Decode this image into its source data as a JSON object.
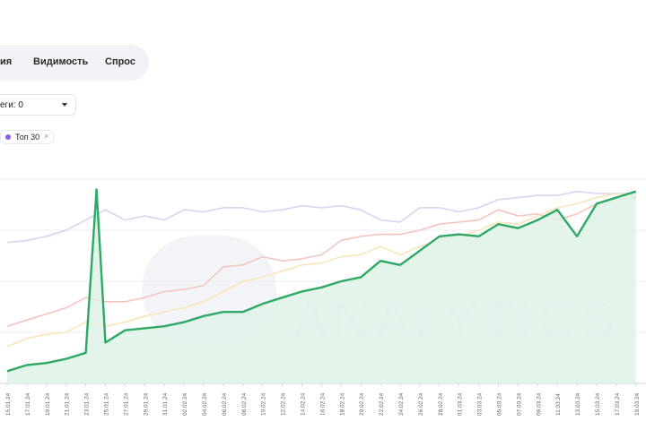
{
  "tabs": {
    "items": [
      {
        "label": "ия"
      },
      {
        "label": "Видимость"
      },
      {
        "label": "Спрос"
      }
    ]
  },
  "filter": {
    "label": "еги: 0"
  },
  "chip": {
    "label": "Топ 30",
    "color": "#8b5cf6"
  },
  "watermark": {
    "text": "ANALYTICS"
  },
  "chart_data": {
    "type": "line",
    "x": [
      "15.01.24",
      "17.01.24",
      "19.01.24",
      "21.01.24",
      "23.01.24",
      "25.01.24",
      "27.01.24",
      "29.01.24",
      "31.01.24",
      "02.02.24",
      "04.02.24",
      "06.02.24",
      "08.02.24",
      "10.02.24",
      "12.02.24",
      "14.02.24",
      "16.02.24",
      "18.02.24",
      "20.02.24",
      "22.02.24",
      "24.02.24",
      "26.02.24",
      "28.02.24",
      "01.03.24",
      "03.03.24",
      "05.03.24",
      "07.03.24",
      "09.03.24",
      "11.03.24",
      "13.03.24",
      "15.03.24",
      "17.03.24",
      "19.03.24"
    ],
    "series": [
      {
        "color": "#d7d3f2",
        "values": [
          69,
          70,
          72,
          75,
          80,
          85,
          80,
          82,
          80,
          85,
          84,
          86,
          86,
          84,
          85,
          87,
          86,
          87,
          85,
          80,
          79,
          86,
          86,
          84,
          86,
          90,
          91,
          92,
          92,
          94,
          93,
          93,
          93
        ]
      },
      {
        "color": "#f6c4bf",
        "values": [
          28,
          31,
          34,
          37,
          42,
          40,
          40,
          42,
          45,
          46,
          48,
          57,
          58,
          62,
          60,
          61,
          63,
          70,
          72,
          73,
          73,
          75,
          78,
          79,
          80,
          85,
          82,
          83,
          80,
          83,
          88,
          90,
          91
        ]
      },
      {
        "color": "#fbe5b8",
        "values": [
          18,
          22,
          24,
          25,
          30,
          28,
          30,
          33,
          35,
          37,
          40,
          45,
          50,
          52,
          55,
          58,
          59,
          62,
          63,
          67,
          63,
          67,
          70,
          72,
          75,
          79,
          78,
          82,
          86,
          88,
          91,
          93,
          92
        ]
      },
      {
        "color": "#2fa865",
        "fill": "#dcf3e6",
        "values": [
          6,
          9,
          10,
          12,
          15,
          20,
          26,
          27,
          28,
          30,
          33,
          35,
          35,
          39,
          42,
          45,
          47,
          50,
          52,
          60,
          58,
          65,
          72,
          73,
          72,
          78,
          76,
          80,
          85,
          72,
          88,
          91,
          94
        ]
      }
    ],
    "spike": {
      "index_after": 4,
      "value": 95
    },
    "ylim": [
      0,
      100
    ],
    "grid": true
  }
}
